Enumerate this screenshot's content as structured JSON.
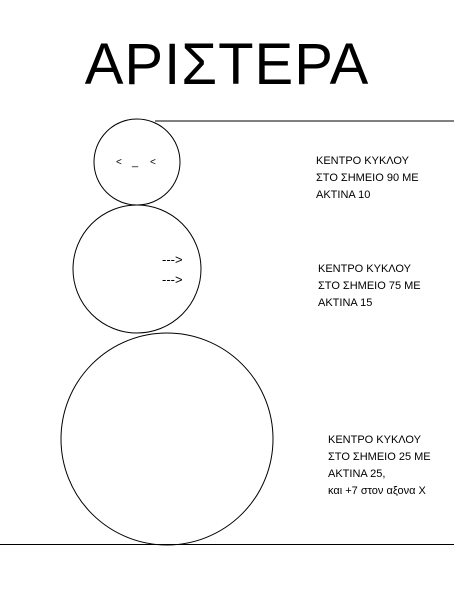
{
  "title": "ΑΡΙΣΤΕΡΑ",
  "head": {
    "left_eye": "<",
    "mouth": "_",
    "right_eye": "<"
  },
  "body": {
    "arrows": [
      "--->",
      "--->"
    ]
  },
  "notes": {
    "head": [
      "ΚΕΝΤΡΟ ΚΥΚΛΟΥ",
      "ΣΤΟ ΣΗΜΕΙΟ 90 ΜΕ",
      "ΑΚΤΙΝΑ 10"
    ],
    "body": [
      "ΚΕΝΤΡΟ ΚΥΚΛΟΥ",
      "ΣΤΟ ΣΗΜΕΙΟ 75 ΜΕ",
      "ΑΚΤΙΝΑ 15"
    ],
    "base": [
      "ΚΕΝΤΡΟ ΚΥΚΛΟΥ",
      "ΣΤΟ ΣΗΜΕΙΟ 25 ΜΕ",
      "ΑΚΤΙΝΑ 25,",
      "και +7 στον αξονα Χ"
    ]
  }
}
